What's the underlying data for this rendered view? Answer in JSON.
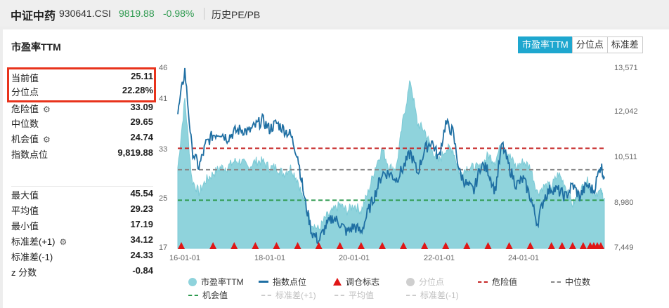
{
  "header": {
    "name": "中证中药",
    "code": "930641.CSI",
    "price": "9819.88",
    "change": "-0.98%",
    "history_link": "历史PE/PB"
  },
  "panel": {
    "title": "市盈率TTM",
    "tabs": [
      {
        "label": "市盈率TTM",
        "active": true
      },
      {
        "label": "分位点",
        "active": false
      },
      {
        "label": "标准差",
        "active": false
      }
    ]
  },
  "stats_top": [
    {
      "label": "当前值",
      "value": "25.11",
      "gear": false
    },
    {
      "label": "分位点",
      "value": "22.28%",
      "gear": false
    },
    {
      "label": "危险值",
      "value": "33.09",
      "gear": true
    },
    {
      "label": "中位数",
      "value": "29.65",
      "gear": false
    },
    {
      "label": "机会值",
      "value": "24.74",
      "gear": true
    },
    {
      "label": "指数点位",
      "value": "9,819.88",
      "gear": false
    }
  ],
  "stats_bottom": [
    {
      "label": "最大值",
      "value": "45.54",
      "gear": false
    },
    {
      "label": "平均值",
      "value": "29.23",
      "gear": false
    },
    {
      "label": "最小值",
      "value": "17.19",
      "gear": false
    },
    {
      "label": "标准差(+1)",
      "value": "34.12",
      "gear": true
    },
    {
      "label": "标准差(-1)",
      "value": "24.33",
      "gear": false
    },
    {
      "label": "z 分数",
      "value": "-0.84",
      "gear": false
    }
  ],
  "legend": [
    {
      "label": "市盈率TTM",
      "kind": "dot",
      "color": "#8fd3dc",
      "dim": false
    },
    {
      "label": "指数点位",
      "kind": "line",
      "color": "#1f6fa3",
      "dim": false
    },
    {
      "label": "调仓标志",
      "kind": "tri",
      "color": "#e01616",
      "dim": false
    },
    {
      "label": "分位点",
      "kind": "dot",
      "color": "#cfcfcf",
      "dim": true
    },
    {
      "label": "危险值",
      "kind": "dash",
      "color": "#c62828",
      "dim": false
    },
    {
      "label": "中位数",
      "kind": "dash",
      "color": "#888888",
      "dim": false
    },
    {
      "label": "机会值",
      "kind": "dash",
      "color": "#2e9a4f",
      "dim": false
    },
    {
      "label": "标准差(+1)",
      "kind": "dash",
      "color": "#cccccc",
      "dim": true
    },
    {
      "label": "平均值",
      "kind": "dash",
      "color": "#cccccc",
      "dim": true
    },
    {
      "label": "标准差(-1)",
      "kind": "dash",
      "color": "#cccccc",
      "dim": true
    }
  ],
  "chart_data": {
    "type": "area",
    "x_start": "2015-08",
    "x_end": "2025-09",
    "x_tick_labels": [
      "16-01-01",
      "18-01-01",
      "20-01-01",
      "22-01-01",
      "24-01-01"
    ],
    "left_axis": {
      "ticks": [
        17,
        25,
        33,
        41,
        46
      ],
      "range": [
        17,
        46
      ]
    },
    "right_axis": {
      "ticks": [
        "7,449",
        "8,980",
        "10,511",
        "12,042",
        "13,571"
      ],
      "range": [
        7449,
        13571
      ]
    },
    "grid": false,
    "colors": {
      "pe": "#8fd3dc",
      "pe_stroke": "#7ccad6",
      "index": "#1f6fa3",
      "danger": "#c62828",
      "median": "#888888",
      "opportunity": "#2e9a4f",
      "marker": "#e01616"
    },
    "series": [
      {
        "name": "市盈率TTM",
        "axis": "left",
        "x": [
          "2015-08",
          "2015-10",
          "2015-12",
          "2016-02",
          "2016-04",
          "2016-06",
          "2016-08",
          "2016-10",
          "2016-12",
          "2017-02",
          "2017-04",
          "2017-06",
          "2017-08",
          "2017-10",
          "2017-12",
          "2018-02",
          "2018-04",
          "2018-06",
          "2018-08",
          "2018-10",
          "2018-12",
          "2019-02",
          "2019-04",
          "2019-06",
          "2019-08",
          "2019-10",
          "2019-12",
          "2020-02",
          "2020-04",
          "2020-06",
          "2020-08",
          "2020-10",
          "2020-12",
          "2021-02",
          "2021-04",
          "2021-06",
          "2021-08",
          "2021-10",
          "2021-12",
          "2022-02",
          "2022-04",
          "2022-06",
          "2022-08",
          "2022-10",
          "2022-12",
          "2023-02",
          "2023-04",
          "2023-06",
          "2023-08",
          "2023-10",
          "2023-12",
          "2024-02",
          "2024-04",
          "2024-06",
          "2024-08",
          "2024-10",
          "2024-12",
          "2025-02",
          "2025-04",
          "2025-06",
          "2025-08",
          "2025-09"
        ],
        "values": [
          30,
          41,
          28,
          26,
          28,
          29,
          30,
          30,
          31,
          31,
          30,
          31,
          31,
          30,
          30,
          29,
          30,
          28,
          24,
          21,
          20,
          22,
          23,
          24,
          23,
          24,
          23,
          26,
          30,
          33,
          30,
          30,
          38,
          44,
          37,
          36,
          33,
          31,
          33,
          33,
          29,
          30,
          30,
          30,
          32,
          31,
          34,
          32,
          30,
          31,
          30,
          26,
          27,
          27,
          29,
          27,
          24,
          26,
          28,
          26,
          26,
          25.11
        ]
      },
      {
        "name": "指数点位",
        "axis": "right",
        "x": [
          "2015-08",
          "2015-10",
          "2015-12",
          "2016-02",
          "2016-04",
          "2016-06",
          "2016-08",
          "2016-10",
          "2016-12",
          "2017-02",
          "2017-04",
          "2017-06",
          "2017-08",
          "2017-10",
          "2017-12",
          "2018-02",
          "2018-04",
          "2018-06",
          "2018-08",
          "2018-10",
          "2018-12",
          "2019-02",
          "2019-04",
          "2019-06",
          "2019-08",
          "2019-10",
          "2019-12",
          "2020-02",
          "2020-04",
          "2020-06",
          "2020-08",
          "2020-10",
          "2020-12",
          "2021-02",
          "2021-04",
          "2021-06",
          "2021-08",
          "2021-10",
          "2021-12",
          "2022-02",
          "2022-04",
          "2022-06",
          "2022-08",
          "2022-10",
          "2022-12",
          "2023-02",
          "2023-04",
          "2023-06",
          "2023-08",
          "2023-10",
          "2023-12",
          "2024-02",
          "2024-04",
          "2024-06",
          "2024-08",
          "2024-10",
          "2024-12",
          "2025-02",
          "2025-04",
          "2025-06",
          "2025-08",
          "2025-09"
        ],
        "values": [
          12000,
          13500,
          10800,
          10200,
          11000,
          11300,
          11400,
          11200,
          11400,
          11500,
          11400,
          11600,
          11800,
          11500,
          11700,
          11500,
          11300,
          10600,
          9100,
          8000,
          7700,
          8200,
          8500,
          8300,
          8000,
          8200,
          8000,
          8700,
          9300,
          10000,
          10000,
          9800,
          10200,
          10700,
          10000,
          10800,
          11100,
          10500,
          11700,
          11400,
          10000,
          9600,
          9400,
          10300,
          10100,
          9400,
          11000,
          10200,
          9600,
          9800,
          9200,
          8300,
          9200,
          9500,
          9400,
          9200,
          9600,
          9200,
          9600,
          9400,
          10300,
          9819.88
        ]
      }
    ],
    "reference_lines": [
      {
        "name": "危险值",
        "value": 33.09
      },
      {
        "name": "中位数",
        "value": 29.65
      },
      {
        "name": "机会值",
        "value": 24.74
      }
    ],
    "rebalance_markers": [
      "2015-09",
      "2016-06",
      "2016-12",
      "2017-06",
      "2017-12",
      "2018-06",
      "2018-12",
      "2019-06",
      "2019-12",
      "2020-06",
      "2020-12",
      "2021-06",
      "2021-12",
      "2022-06",
      "2022-12",
      "2023-06",
      "2023-12",
      "2024-06",
      "2024-09",
      "2024-12",
      "2025-03",
      "2025-05",
      "2025-06",
      "2025-07",
      "2025-08"
    ]
  }
}
